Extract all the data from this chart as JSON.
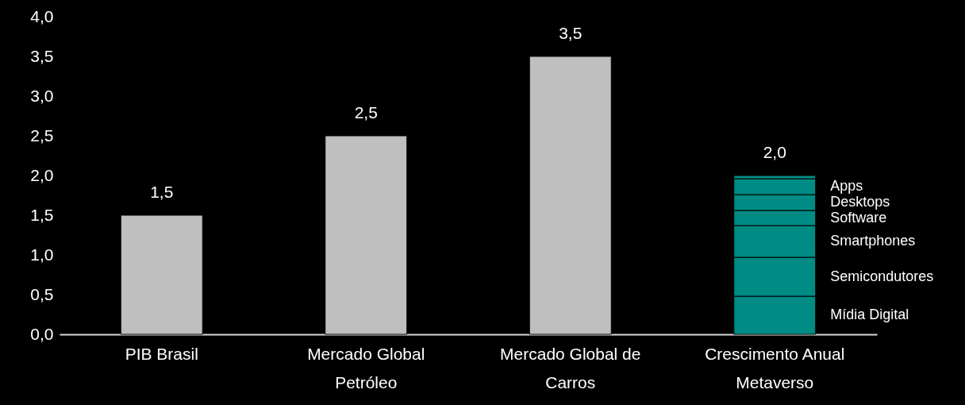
{
  "chart_data": {
    "type": "bar",
    "stacked": true,
    "categories": [
      "PIB Brasil",
      "Mercado Global\nPetróleo",
      "Mercado Global de\nCarros",
      "Crescimento Anual\nMetaverso"
    ],
    "series": [
      {
        "color": "#bfbfbf",
        "values": [
          1.5,
          2.5,
          3.5,
          null
        ]
      },
      {
        "name": "Mídia Digital",
        "color": "#008b85",
        "values": [
          null,
          null,
          null,
          0.48
        ]
      },
      {
        "name": "Semicondutores",
        "color": "#008b85",
        "values": [
          null,
          null,
          null,
          0.49
        ]
      },
      {
        "name": "Smartphones",
        "color": "#008b85",
        "values": [
          null,
          null,
          null,
          0.4
        ]
      },
      {
        "name": "Software",
        "color": "#008b85",
        "values": [
          null,
          null,
          null,
          0.19
        ]
      },
      {
        "name": "Desktops",
        "color": "#008b85",
        "values": [
          null,
          null,
          null,
          0.2
        ]
      },
      {
        "name": "Apps",
        "color": "#008b85",
        "values": [
          null,
          null,
          null,
          0.2
        ]
      },
      {
        "color": "#008b85",
        "values": [
          null,
          null,
          null,
          0.04
        ]
      }
    ],
    "totals": [
      "1,5",
      "2,5",
      "3,5",
      "2,0"
    ],
    "ylim": [
      0,
      4
    ],
    "yticks": [
      {
        "value": 0,
        "label": "0,0"
      },
      {
        "value": 0.5,
        "label": "0,5"
      },
      {
        "value": 1,
        "label": "1,0"
      },
      {
        "value": 1.5,
        "label": "1,5"
      },
      {
        "value": 2,
        "label": "2,0"
      },
      {
        "value": 2.5,
        "label": "2,5"
      },
      {
        "value": 3,
        "label": "3,0"
      },
      {
        "value": 3.5,
        "label": "3,5"
      },
      {
        "value": 4,
        "label": "4,0"
      }
    ],
    "grid": false
  }
}
